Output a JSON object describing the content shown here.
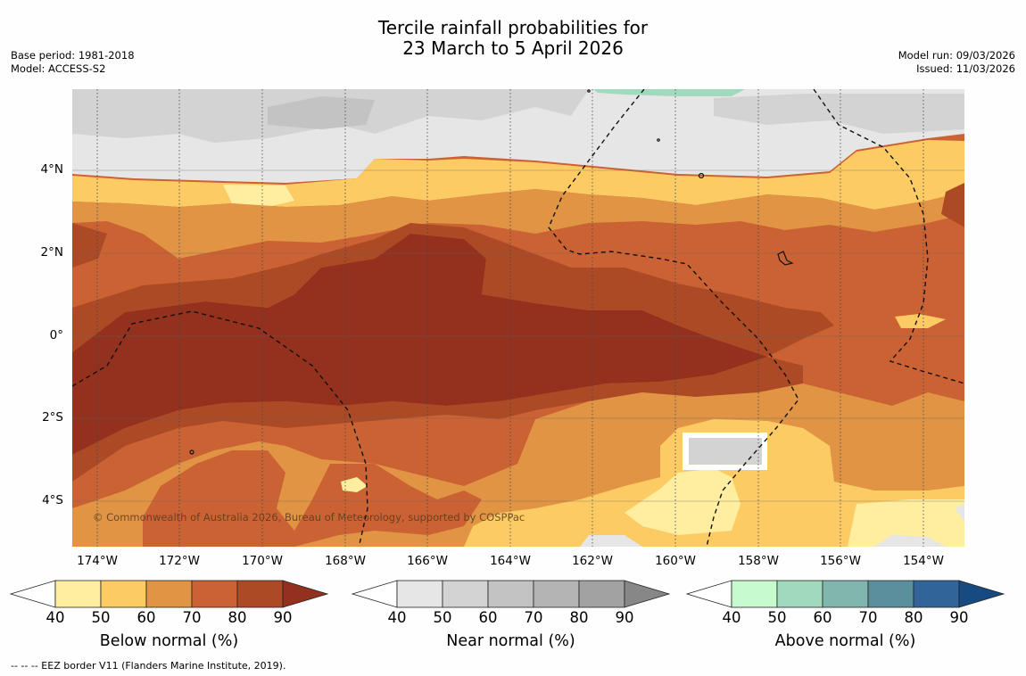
{
  "title": {
    "line1": "Tercile rainfall probabilities for",
    "line2": "23 March to 5 April 2026"
  },
  "meta_left": {
    "base_period": "Base period: 1981-2018",
    "model": "Model: ACCESS-S2"
  },
  "meta_right": {
    "model_run": "Model run: 09/03/2026",
    "issued": "Issued: 11/03/2026"
  },
  "map": {
    "lat_labels": [
      "4°N",
      "2°N",
      "0°",
      "2°S",
      "4°S"
    ],
    "lon_labels": [
      "174°W",
      "172°W",
      "170°W",
      "168°W",
      "166°W",
      "164°W",
      "162°W",
      "160°W",
      "158°W",
      "156°W",
      "154°W"
    ],
    "copyright": "© Commonwealth of Australia 2026, Bureau of Meteorology, supported by COSPPac"
  },
  "colorbars": [
    {
      "name": "below",
      "title": "Below normal (%)",
      "ticks": [
        "40",
        "50",
        "60",
        "70",
        "80",
        "90"
      ],
      "colors": [
        "#ffffff",
        "#ffeda0",
        "#fdcb63",
        "#e09444",
        "#cb6233",
        "#ad4a26",
        "#93311e"
      ]
    },
    {
      "name": "near",
      "title": "Near normal (%)",
      "ticks": [
        "40",
        "50",
        "60",
        "70",
        "80",
        "90"
      ],
      "colors": [
        "#ffffff",
        "#e6e6e6",
        "#d3d3d3",
        "#c3c3c3",
        "#b4b4b4",
        "#a2a2a2",
        "#878787"
      ]
    },
    {
      "name": "above",
      "title": "Above normal (%)",
      "ticks": [
        "40",
        "50",
        "60",
        "70",
        "80",
        "90"
      ],
      "colors": [
        "#ffffff",
        "#c7fbcd",
        "#a1d9bd",
        "#80b6ae",
        "#5c8f9e",
        "#31659a",
        "#174a80"
      ]
    }
  ],
  "footnote": "--  --  -- EEZ border V11 (Flanders Marine Institute, 2019)."
}
